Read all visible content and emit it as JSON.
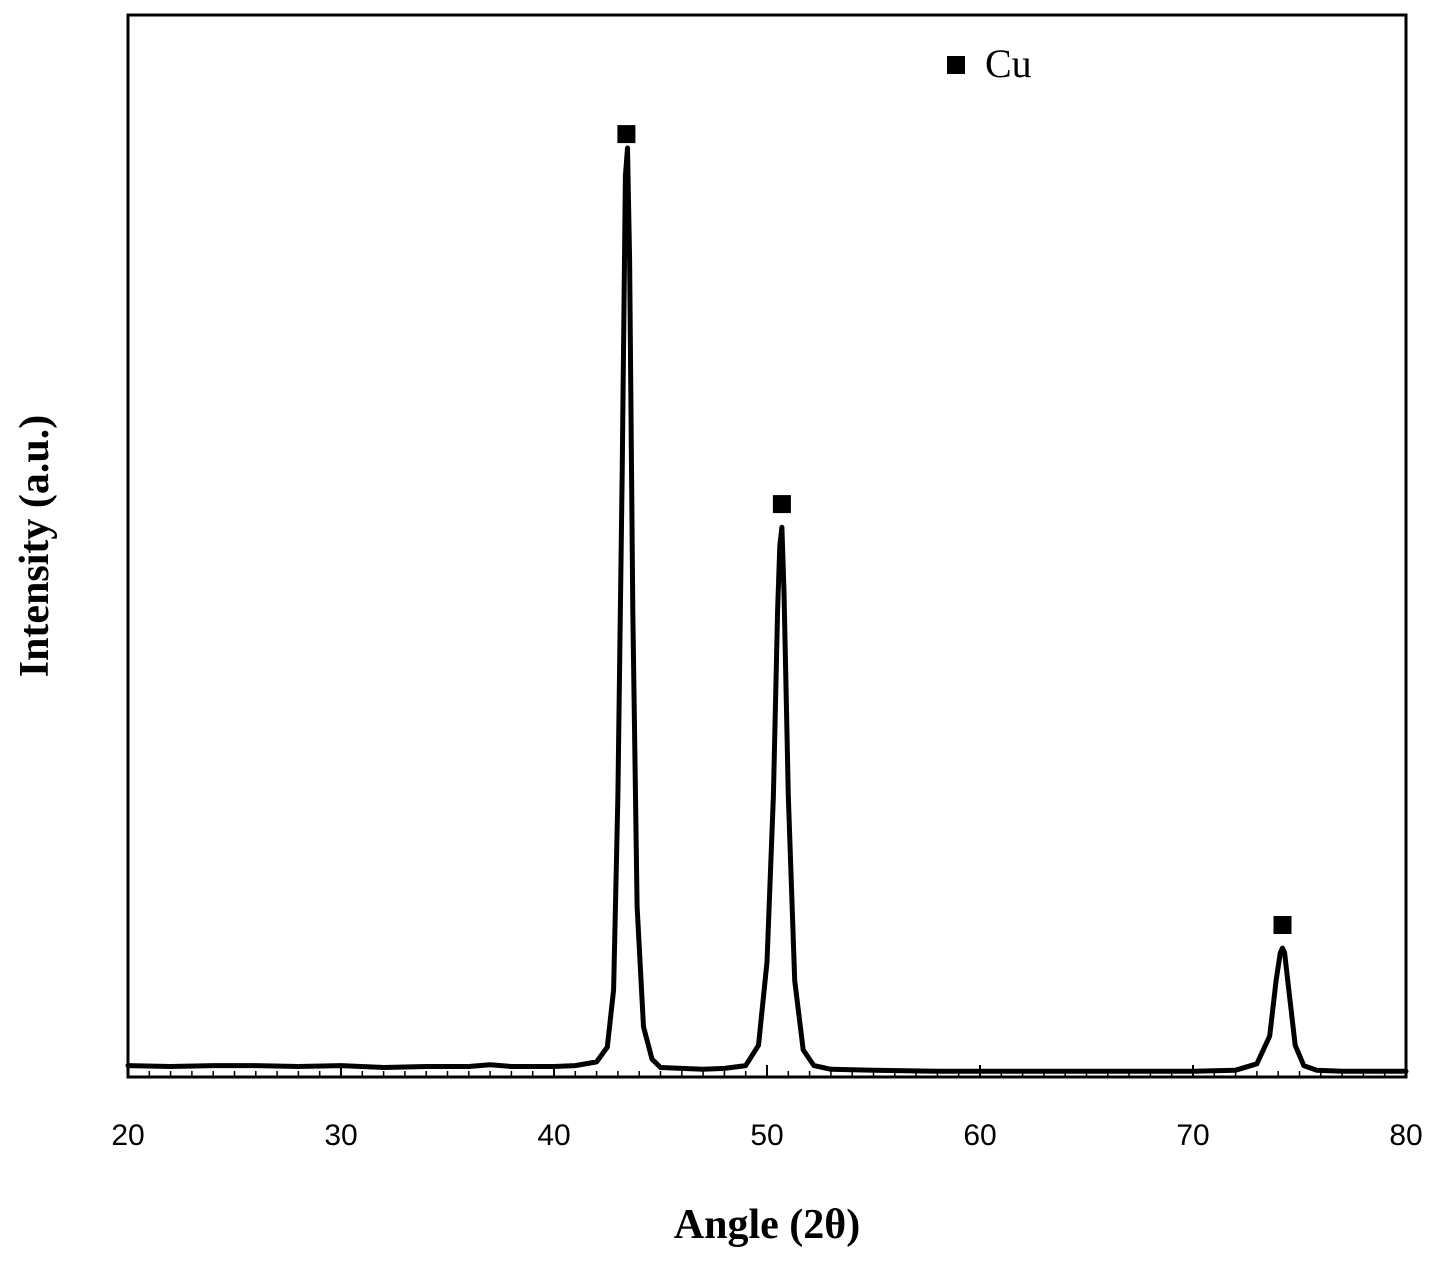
{
  "chart_data": {
    "type": "line",
    "title": "",
    "xlabel": "Angle (2θ)",
    "ylabel": "Intensity (a.u.)",
    "xlim": [
      20,
      80
    ],
    "ylim": [
      0,
      1.1
    ],
    "x_ticks": [
      20,
      30,
      40,
      50,
      60,
      70,
      80
    ],
    "y_ticks_shown": false,
    "grid": false,
    "legend": {
      "position": "top-right",
      "entries": [
        {
          "marker": "filled-square",
          "label": "Cu"
        }
      ]
    },
    "series": [
      {
        "x": [
          20,
          22,
          24,
          26,
          28,
          30,
          32,
          34,
          36,
          37,
          38,
          40,
          41,
          42,
          42.5,
          42.8,
          43.0,
          43.2,
          43.35,
          43.45,
          43.55,
          43.7,
          43.9,
          44.2,
          44.6,
          45,
          46,
          47,
          48,
          49,
          49.6,
          50.0,
          50.3,
          50.5,
          50.6,
          50.7,
          50.8,
          51.0,
          51.3,
          51.7,
          52.2,
          53,
          55,
          58,
          60,
          62,
          65,
          68,
          70,
          72,
          73.0,
          73.6,
          73.9,
          74.1,
          74.2,
          74.3,
          74.5,
          74.8,
          75.2,
          75.8,
          77,
          79,
          80
        ],
        "y": [
          0.008,
          0.007,
          0.008,
          0.008,
          0.007,
          0.008,
          0.006,
          0.007,
          0.007,
          0.009,
          0.007,
          0.007,
          0.008,
          0.012,
          0.028,
          0.09,
          0.3,
          0.65,
          0.97,
          1.0,
          0.88,
          0.5,
          0.18,
          0.05,
          0.015,
          0.006,
          0.005,
          0.004,
          0.005,
          0.008,
          0.03,
          0.12,
          0.3,
          0.5,
          0.57,
          0.59,
          0.52,
          0.3,
          0.1,
          0.025,
          0.008,
          0.004,
          0.003,
          0.002,
          0.002,
          0.002,
          0.002,
          0.002,
          0.002,
          0.003,
          0.01,
          0.04,
          0.1,
          0.13,
          0.135,
          0.13,
          0.09,
          0.03,
          0.008,
          0.003,
          0.002,
          0.002,
          0.002
        ]
      }
    ],
    "peak_markers": [
      {
        "x": 43.4,
        "y": 1.015
      },
      {
        "x": 50.7,
        "y": 0.615
      },
      {
        "x": 74.2,
        "y": 0.16
      }
    ]
  }
}
